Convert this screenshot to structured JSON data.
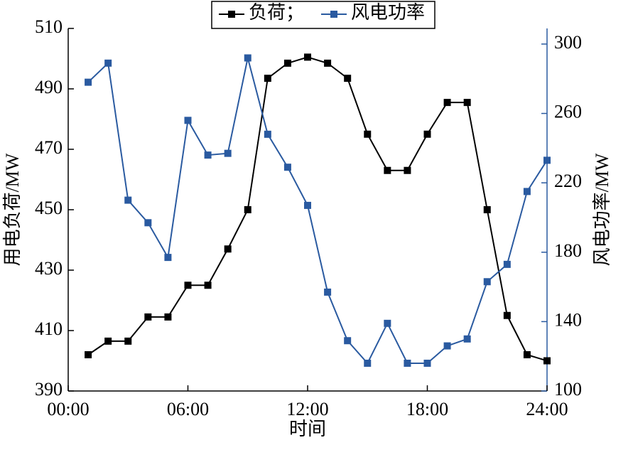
{
  "chart_data": {
    "type": "line",
    "x_label": "时间",
    "y_label": "用电负荷/MW",
    "y2_label": "风电功率/MW",
    "x": [
      1,
      2,
      3,
      4,
      5,
      6,
      7,
      8,
      9,
      10,
      11,
      12,
      13,
      14,
      15,
      16,
      17,
      18,
      19,
      20,
      21,
      22,
      23,
      24
    ],
    "xlim": [
      0,
      24
    ],
    "xticks": [
      {
        "value": 0,
        "label": "00:00"
      },
      {
        "value": 6,
        "label": "06:00"
      },
      {
        "value": 12,
        "label": "12:00"
      },
      {
        "value": 18,
        "label": "18:00"
      },
      {
        "value": 24,
        "label": "24:00"
      }
    ],
    "ylim": [
      390,
      510
    ],
    "yticks": [
      390,
      410,
      430,
      450,
      470,
      490,
      510
    ],
    "y2lim": [
      100,
      309
    ],
    "y2ticks": [
      100,
      140,
      180,
      220,
      260,
      300
    ],
    "y2_color": "#2a5aa0",
    "series": [
      {
        "name": "负荷；",
        "color": "#000000",
        "values": [
          402,
          406.5,
          406.5,
          414.5,
          414.5,
          425,
          425,
          437,
          450,
          493.5,
          498.5,
          500.5,
          498.5,
          493.5,
          475,
          463,
          463,
          475,
          485.5,
          485.5,
          450,
          415,
          402,
          400
        ]
      },
      {
        "name": "风电功率",
        "color": "#2a5aa0",
        "axis": "y2",
        "values": [
          278,
          289,
          210,
          197,
          177,
          256,
          236,
          237,
          292,
          248,
          229,
          207,
          157,
          129,
          116,
          139,
          116,
          116,
          126,
          130,
          163,
          173,
          215,
          233
        ]
      }
    ]
  }
}
